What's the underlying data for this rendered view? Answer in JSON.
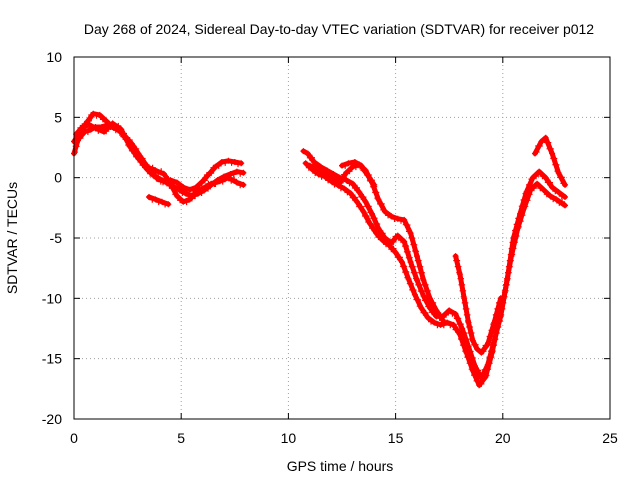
{
  "chart_data": {
    "type": "scatter",
    "title": "Day 268 of 2024, Sidereal Day-to-day VTEC variation (SDTVAR) for receiver p012",
    "xlabel": "GPS time / hours",
    "ylabel": "SDTVAR / TECUs",
    "xlim": [
      0,
      25
    ],
    "ylim": [
      -20,
      10
    ],
    "xticks": [
      0,
      5,
      10,
      15,
      20,
      25
    ],
    "yticks": [
      -20,
      -15,
      -10,
      -5,
      0,
      5,
      10
    ],
    "grid": true,
    "legend": "none",
    "marker": "plus",
    "color": "#ff0000",
    "series": [
      {
        "values": [
          [
            0.0,
            2.0
          ],
          [
            0.2,
            3.2
          ],
          [
            0.5,
            3.8
          ],
          [
            0.8,
            4.0
          ],
          [
            1.0,
            4.2
          ],
          [
            1.3,
            4.2
          ],
          [
            1.6,
            4.4
          ],
          [
            1.9,
            4.3
          ],
          [
            2.2,
            3.8
          ],
          [
            2.5,
            3.0
          ],
          [
            2.8,
            2.2
          ],
          [
            3.1,
            1.4
          ],
          [
            3.4,
            0.7
          ],
          [
            3.7,
            0.2
          ],
          [
            4.0,
            -0.1
          ],
          [
            4.3,
            -0.4
          ],
          [
            4.6,
            -0.7
          ],
          [
            4.9,
            -1.0
          ],
          [
            5.2,
            -1.3
          ],
          [
            5.5,
            -1.5
          ],
          [
            5.8,
            -1.3
          ],
          [
            6.1,
            -1.0
          ],
          [
            6.4,
            -0.6
          ],
          [
            6.7,
            -0.2
          ],
          [
            7.0,
            0.1
          ],
          [
            7.3,
            0.3
          ],
          [
            7.6,
            0.5
          ],
          [
            7.9,
            0.4
          ]
        ]
      },
      {
        "values": [
          [
            0.0,
            3.0
          ],
          [
            0.3,
            3.8
          ],
          [
            0.6,
            4.6
          ],
          [
            0.9,
            5.3
          ],
          [
            1.2,
            5.2
          ],
          [
            1.5,
            4.7
          ],
          [
            1.8,
            4.2
          ],
          [
            2.1,
            3.9
          ],
          [
            2.4,
            3.4
          ],
          [
            2.7,
            2.8
          ],
          [
            3.0,
            2.0
          ],
          [
            3.3,
            1.2
          ],
          [
            3.6,
            0.5
          ],
          [
            3.9,
            -0.1
          ],
          [
            4.2,
            -0.3
          ],
          [
            4.5,
            -0.2
          ],
          [
            4.8,
            -0.4
          ],
          [
            5.1,
            -0.8
          ],
          [
            5.4,
            -1.0
          ],
          [
            5.7,
            -0.8
          ],
          [
            6.0,
            -0.3
          ],
          [
            6.3,
            0.3
          ],
          [
            6.6,
            0.9
          ],
          [
            6.9,
            1.3
          ],
          [
            7.2,
            1.4
          ],
          [
            7.5,
            1.3
          ],
          [
            7.8,
            1.2
          ]
        ]
      },
      {
        "values": [
          [
            0.1,
            3.6
          ],
          [
            0.4,
            4.2
          ],
          [
            0.7,
            4.4
          ],
          [
            1.0,
            4.1
          ],
          [
            1.4,
            3.8
          ],
          [
            1.8,
            4.5
          ],
          [
            2.2,
            4.0
          ],
          [
            2.6,
            2.6
          ],
          [
            3.0,
            1.6
          ],
          [
            3.4,
            0.9
          ],
          [
            3.8,
            0.6
          ],
          [
            4.2,
            0.3
          ],
          [
            4.5,
            -0.5
          ],
          [
            4.8,
            -1.5
          ],
          [
            5.1,
            -2.0
          ],
          [
            5.4,
            -1.8
          ],
          [
            5.7,
            -1.2
          ],
          [
            6.0,
            -0.9
          ],
          [
            6.4,
            -0.5
          ],
          [
            6.8,
            -0.3
          ],
          [
            7.2,
            0.0
          ],
          [
            7.6,
            -0.4
          ],
          [
            7.9,
            -0.6
          ]
        ]
      },
      {
        "values": [
          [
            3.5,
            -1.6
          ],
          [
            3.8,
            -1.8
          ],
          [
            4.1,
            -2.0
          ],
          [
            4.4,
            -2.2
          ]
        ]
      },
      {
        "values": [
          [
            10.7,
            2.2
          ],
          [
            10.9,
            2.0
          ],
          [
            11.2,
            1.3
          ],
          [
            11.5,
            0.9
          ],
          [
            11.8,
            0.6
          ],
          [
            12.1,
            0.3
          ],
          [
            12.4,
            0.0
          ],
          [
            12.7,
            -0.2
          ],
          [
            13.0,
            -0.5
          ],
          [
            13.3,
            -1.2
          ],
          [
            13.6,
            -2.0
          ],
          [
            13.9,
            -3.0
          ],
          [
            14.2,
            -4.2
          ],
          [
            14.5,
            -5.0
          ],
          [
            14.8,
            -5.4
          ],
          [
            15.1,
            -4.8
          ],
          [
            15.4,
            -5.3
          ],
          [
            15.7,
            -7.0
          ],
          [
            16.0,
            -8.5
          ],
          [
            16.3,
            -9.8
          ],
          [
            16.6,
            -10.8
          ],
          [
            16.9,
            -11.5
          ],
          [
            17.2,
            -11.5
          ],
          [
            17.5,
            -11.0
          ],
          [
            17.8,
            -11.3
          ],
          [
            18.1,
            -12.5
          ],
          [
            18.4,
            -14.0
          ],
          [
            18.7,
            -15.6
          ],
          [
            19.0,
            -16.6
          ],
          [
            19.3,
            -15.5
          ],
          [
            19.6,
            -13.5
          ],
          [
            19.9,
            -11.5
          ],
          [
            20.2,
            -8.5
          ],
          [
            20.5,
            -5.0
          ],
          [
            20.8,
            -3.0
          ],
          [
            21.1,
            -1.2
          ],
          [
            21.4,
            0.0
          ],
          [
            21.7,
            0.5
          ],
          [
            22.0,
            0.0
          ],
          [
            22.3,
            -0.8
          ],
          [
            22.6,
            -1.2
          ],
          [
            22.9,
            -1.6
          ]
        ]
      },
      {
        "values": [
          [
            10.8,
            1.2
          ],
          [
            11.1,
            0.7
          ],
          [
            11.4,
            0.3
          ],
          [
            11.7,
            0.1
          ],
          [
            12.0,
            -0.3
          ],
          [
            12.3,
            -0.6
          ],
          [
            12.6,
            -0.9
          ],
          [
            12.9,
            -1.3
          ],
          [
            13.2,
            -2.0
          ],
          [
            13.5,
            -2.8
          ],
          [
            13.8,
            -3.8
          ],
          [
            14.1,
            -4.6
          ],
          [
            14.4,
            -5.2
          ],
          [
            14.7,
            -5.6
          ],
          [
            15.0,
            -6.2
          ],
          [
            15.3,
            -7.0
          ],
          [
            15.6,
            -8.4
          ],
          [
            15.9,
            -9.7
          ],
          [
            16.2,
            -10.8
          ],
          [
            16.5,
            -11.6
          ],
          [
            16.8,
            -12.0
          ],
          [
            17.1,
            -12.2
          ],
          [
            17.4,
            -12.0
          ],
          [
            17.7,
            -12.2
          ],
          [
            18.0,
            -13.0
          ],
          [
            18.3,
            -14.5
          ],
          [
            18.6,
            -16.0
          ],
          [
            18.9,
            -17.2
          ],
          [
            19.2,
            -16.5
          ],
          [
            19.5,
            -14.5
          ],
          [
            19.8,
            -12.0
          ],
          [
            20.1,
            -9.5
          ],
          [
            20.4,
            -6.5
          ],
          [
            20.7,
            -4.2
          ],
          [
            21.0,
            -2.5
          ],
          [
            21.3,
            -1.0
          ],
          [
            21.6,
            -0.5
          ],
          [
            21.9,
            -1.0
          ],
          [
            22.2,
            -1.5
          ],
          [
            22.5,
            -1.8
          ],
          [
            22.9,
            -2.3
          ]
        ]
      },
      {
        "values": [
          [
            11.0,
            1.0
          ],
          [
            11.3,
            0.8
          ],
          [
            11.6,
            0.4
          ],
          [
            12.0,
            0.2
          ],
          [
            12.4,
            -0.4
          ],
          [
            12.7,
            0.4
          ],
          [
            13.0,
            0.9
          ],
          [
            13.3,
            1.1
          ],
          [
            13.6,
            0.6
          ],
          [
            13.9,
            -0.4
          ],
          [
            14.2,
            -1.8
          ],
          [
            14.5,
            -2.8
          ],
          [
            14.8,
            -3.2
          ],
          [
            15.1,
            -3.4
          ],
          [
            15.4,
            -3.5
          ],
          [
            15.7,
            -4.6
          ],
          [
            16.0,
            -6.5
          ],
          [
            16.3,
            -8.5
          ],
          [
            16.6,
            -10.0
          ],
          [
            16.9,
            -11.0
          ],
          [
            17.2,
            -11.8
          ]
        ]
      },
      {
        "values": [
          [
            12.5,
            1.0
          ],
          [
            12.8,
            1.2
          ],
          [
            13.1,
            1.3
          ],
          [
            13.4,
            1.0
          ],
          [
            13.7,
            0.2
          ],
          [
            14.0,
            -0.6
          ]
        ]
      },
      {
        "values": [
          [
            17.8,
            -6.5
          ],
          [
            18.0,
            -8.0
          ],
          [
            18.2,
            -10.0
          ],
          [
            18.4,
            -12.0
          ],
          [
            18.6,
            -13.5
          ],
          [
            18.8,
            -14.2
          ],
          [
            19.0,
            -14.5
          ],
          [
            19.3,
            -13.8
          ],
          [
            19.6,
            -12.0
          ],
          [
            19.9,
            -10.0
          ]
        ]
      },
      {
        "values": [
          [
            21.5,
            2.0
          ],
          [
            21.8,
            3.0
          ],
          [
            22.0,
            3.3
          ],
          [
            22.3,
            2.0
          ],
          [
            22.6,
            0.4
          ],
          [
            22.9,
            -0.6
          ]
        ]
      }
    ]
  }
}
